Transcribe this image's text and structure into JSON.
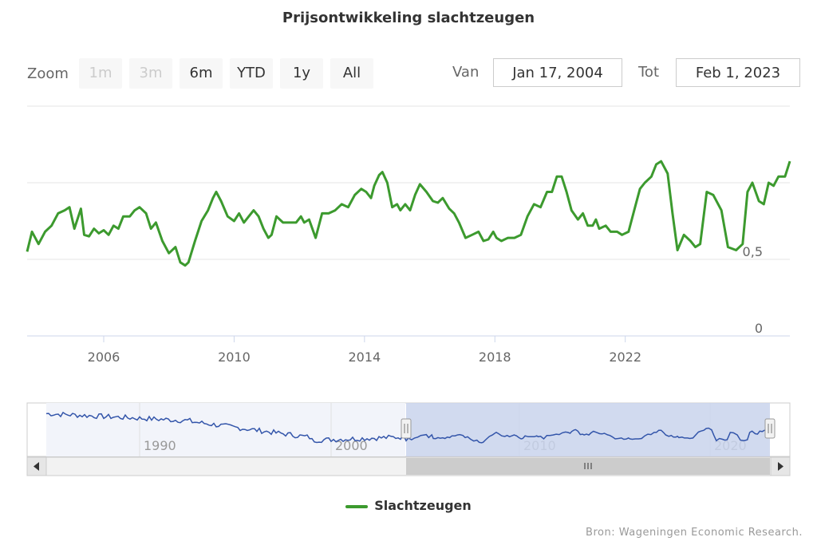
{
  "toolbar": {
    "zoom_label": "Zoom",
    "buttons": [
      {
        "label": "1m",
        "enabled": false
      },
      {
        "label": "3m",
        "enabled": false
      },
      {
        "label": "6m",
        "enabled": true
      },
      {
        "label": "YTD",
        "enabled": true
      },
      {
        "label": "1y",
        "enabled": true
      },
      {
        "label": "All",
        "enabled": true
      }
    ],
    "from_label": "Van",
    "from_value": "Jan 17, 2004",
    "to_label": "Tot",
    "to_value": "Feb 1, 2023"
  },
  "legend": {
    "label": "Slachtzeugen"
  },
  "credits": "Bron: Wageningen Economic Research.",
  "colors": {
    "series": "#3c9a2e",
    "navigator": "#3355aa",
    "navigator_mask": "#c9d3ec"
  },
  "chart_data": {
    "type": "line",
    "title": "Prijsontwikkeling slachtzeugen",
    "xlabel": "",
    "ylabel": "",
    "x_range": [
      "Jan 17, 2004",
      "Feb 1, 2023"
    ],
    "x_ticks": [
      "2006",
      "2010",
      "2014",
      "2018",
      "2022"
    ],
    "y_ticks": [
      "0",
      "0,5"
    ],
    "ylim": [
      0,
      1.5
    ],
    "grid": true,
    "series": [
      {
        "name": "Slachtzeugen",
        "points": [
          [
            2004.05,
            0.55
          ],
          [
            2004.2,
            0.68
          ],
          [
            2004.4,
            0.6
          ],
          [
            2004.6,
            0.68
          ],
          [
            2004.8,
            0.72
          ],
          [
            2005.0,
            0.8
          ],
          [
            2005.2,
            0.82
          ],
          [
            2005.35,
            0.84
          ],
          [
            2005.5,
            0.7
          ],
          [
            2005.7,
            0.83
          ],
          [
            2005.8,
            0.66
          ],
          [
            2005.95,
            0.65
          ],
          [
            2006.1,
            0.7
          ],
          [
            2006.25,
            0.67
          ],
          [
            2006.4,
            0.69
          ],
          [
            2006.55,
            0.66
          ],
          [
            2006.7,
            0.72
          ],
          [
            2006.85,
            0.7
          ],
          [
            2007.0,
            0.78
          ],
          [
            2007.2,
            0.78
          ],
          [
            2007.35,
            0.82
          ],
          [
            2007.5,
            0.84
          ],
          [
            2007.7,
            0.8
          ],
          [
            2007.85,
            0.7
          ],
          [
            2008.0,
            0.74
          ],
          [
            2008.2,
            0.62
          ],
          [
            2008.4,
            0.54
          ],
          [
            2008.6,
            0.58
          ],
          [
            2008.75,
            0.48
          ],
          [
            2008.9,
            0.46
          ],
          [
            2009.0,
            0.48
          ],
          [
            2009.2,
            0.62
          ],
          [
            2009.4,
            0.75
          ],
          [
            2009.6,
            0.82
          ],
          [
            2009.75,
            0.9
          ],
          [
            2009.85,
            0.94
          ],
          [
            2010.0,
            0.88
          ],
          [
            2010.2,
            0.78
          ],
          [
            2010.4,
            0.75
          ],
          [
            2010.55,
            0.8
          ],
          [
            2010.7,
            0.74
          ],
          [
            2010.85,
            0.78
          ],
          [
            2011.0,
            0.82
          ],
          [
            2011.15,
            0.78
          ],
          [
            2011.3,
            0.7
          ],
          [
            2011.45,
            0.64
          ],
          [
            2011.55,
            0.66
          ],
          [
            2011.7,
            0.78
          ],
          [
            2011.9,
            0.74
          ],
          [
            2012.1,
            0.74
          ],
          [
            2012.3,
            0.74
          ],
          [
            2012.45,
            0.78
          ],
          [
            2012.55,
            0.74
          ],
          [
            2012.7,
            0.76
          ],
          [
            2012.9,
            0.64
          ],
          [
            2013.1,
            0.8
          ],
          [
            2013.3,
            0.8
          ],
          [
            2013.5,
            0.82
          ],
          [
            2013.7,
            0.86
          ],
          [
            2013.9,
            0.84
          ],
          [
            2014.1,
            0.92
          ],
          [
            2014.3,
            0.96
          ],
          [
            2014.45,
            0.94
          ],
          [
            2014.6,
            0.9
          ],
          [
            2014.7,
            0.98
          ],
          [
            2014.85,
            1.05
          ],
          [
            2014.95,
            1.07
          ],
          [
            2015.1,
            1.0
          ],
          [
            2015.25,
            0.84
          ],
          [
            2015.4,
            0.86
          ],
          [
            2015.5,
            0.82
          ],
          [
            2015.65,
            0.86
          ],
          [
            2015.8,
            0.82
          ],
          [
            2015.95,
            0.92
          ],
          [
            2016.1,
            0.99
          ],
          [
            2016.3,
            0.94
          ],
          [
            2016.5,
            0.88
          ],
          [
            2016.65,
            0.87
          ],
          [
            2016.8,
            0.9
          ],
          [
            2017.0,
            0.83
          ],
          [
            2017.15,
            0.8
          ],
          [
            2017.3,
            0.74
          ],
          [
            2017.5,
            0.64
          ],
          [
            2017.7,
            0.66
          ],
          [
            2017.9,
            0.68
          ],
          [
            2018.05,
            0.62
          ],
          [
            2018.2,
            0.63
          ],
          [
            2018.35,
            0.68
          ],
          [
            2018.45,
            0.64
          ],
          [
            2018.6,
            0.62
          ],
          [
            2018.8,
            0.64
          ],
          [
            2019.0,
            0.64
          ],
          [
            2019.2,
            0.66
          ],
          [
            2019.4,
            0.78
          ],
          [
            2019.6,
            0.86
          ],
          [
            2019.8,
            0.84
          ],
          [
            2020.0,
            0.94
          ],
          [
            2020.15,
            0.94
          ],
          [
            2020.3,
            1.04
          ],
          [
            2020.45,
            1.04
          ],
          [
            2020.6,
            0.94
          ],
          [
            2020.75,
            0.82
          ],
          [
            2020.95,
            0.76
          ],
          [
            2021.1,
            0.8
          ],
          [
            2021.25,
            0.72
          ],
          [
            2021.4,
            0.72
          ],
          [
            2021.5,
            0.76
          ],
          [
            2021.6,
            0.7
          ],
          [
            2021.8,
            0.72
          ],
          [
            2021.95,
            0.68
          ],
          [
            2022.15,
            0.68
          ],
          [
            2022.3,
            0.66
          ],
          [
            2022.5,
            0.68
          ],
          [
            2022.7,
            0.84
          ],
          [
            2022.85,
            0.96
          ],
          [
            2023.0,
            1.0
          ],
          [
            2023.2,
            1.04
          ],
          [
            2023.35,
            1.12
          ],
          [
            2023.5,
            1.14
          ],
          [
            2023.7,
            1.06
          ],
          [
            2023.85,
            0.8
          ],
          [
            2024.0,
            0.56
          ],
          [
            2024.2,
            0.66
          ],
          [
            2024.4,
            0.62
          ],
          [
            2024.55,
            0.58
          ],
          [
            2024.7,
            0.6
          ],
          [
            2024.9,
            0.94
          ],
          [
            2025.1,
            0.92
          ],
          [
            2025.35,
            0.82
          ],
          [
            2025.55,
            0.58
          ],
          [
            2025.8,
            0.56
          ],
          [
            2026.0,
            0.6
          ],
          [
            2026.15,
            0.94
          ],
          [
            2026.3,
            1.0
          ],
          [
            2026.5,
            0.88
          ],
          [
            2026.65,
            0.86
          ],
          [
            2026.8,
            1.0
          ],
          [
            2026.95,
            0.98
          ],
          [
            2027.1,
            1.04
          ],
          [
            2027.3,
            1.04
          ],
          [
            2027.45,
            1.14
          ]
        ]
      }
    ],
    "navigator": {
      "x_ticks": [
        "1990",
        "2000",
        "2010",
        "2020"
      ],
      "selected_range": [
        "2004",
        "2023"
      ]
    }
  }
}
